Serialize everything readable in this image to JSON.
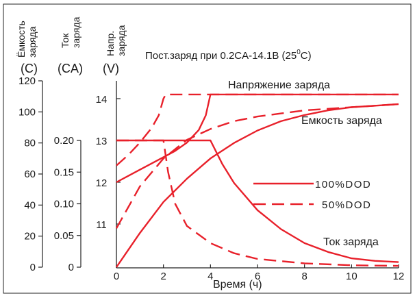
{
  "chart_data": {
    "type": "line",
    "title": "Пост.заряд при 0.2CA-14.1B (25",
    "title_deg": "0",
    "title_tail": "C)",
    "xlabel": "Время (ч)",
    "x_ticks": [
      "0",
      "2",
      "4",
      "6",
      "8",
      "10",
      "12"
    ],
    "xlim": [
      0,
      12
    ],
    "axes": {
      "capacity": {
        "label_line1": "Ёмкость",
        "label_line2": "заряда",
        "unit": "(C)",
        "ticks": [
          "0",
          "20",
          "40",
          "60",
          "80",
          "100",
          "120"
        ],
        "ylim": [
          0,
          120
        ]
      },
      "current": {
        "label_line1": "Ток",
        "label_line2": "заряда",
        "unit": "(CA)",
        "ticks": [
          "0",
          "0.05",
          "0.10",
          "0.15",
          "0.20"
        ],
        "ylim": [
          0,
          0.2
        ]
      },
      "voltage": {
        "label_line1": "Напр.",
        "label_line2": "заряда",
        "unit": "(V)",
        "ticks": [
          "11",
          "12",
          "13",
          "14"
        ],
        "ylim": [
          10,
          14.5
        ]
      }
    },
    "annotations": {
      "voltage": "Напряжение заряда",
      "capacity": "Емкость заряда",
      "current": "Ток заряда"
    },
    "legend": [
      {
        "label": "100%DOD",
        "style": "solid"
      },
      {
        "label": "50%DOD",
        "style": "dashed"
      }
    ],
    "legend_position": "center-right",
    "series_color": "#e8202a",
    "series": [
      {
        "quantity": "voltage",
        "dod": "100%",
        "style": "solid",
        "x": [
          0,
          0.5,
          1,
          1.5,
          2,
          2.5,
          3,
          3.5,
          3.8,
          4,
          6,
          8,
          10,
          12
        ],
        "y": [
          12.0,
          12.15,
          12.3,
          12.45,
          12.6,
          12.75,
          12.95,
          13.25,
          13.6,
          14.1,
          14.1,
          14.1,
          14.1,
          14.1
        ]
      },
      {
        "quantity": "voltage",
        "dod": "50%",
        "style": "dashed",
        "x": [
          0,
          0.5,
          1,
          1.5,
          1.8,
          2,
          2.1,
          6,
          8,
          10,
          12
        ],
        "y": [
          12.4,
          12.65,
          12.95,
          13.3,
          13.6,
          14.0,
          14.1,
          14.1,
          14.1,
          14.1,
          14.1
        ]
      },
      {
        "quantity": "current",
        "dod": "100%",
        "style": "solid",
        "x": [
          0,
          4,
          4.5,
          5,
          6,
          7,
          8,
          9,
          10,
          11,
          12
        ],
        "y": [
          0.2,
          0.2,
          0.163,
          0.133,
          0.09,
          0.06,
          0.038,
          0.024,
          0.014,
          0.01,
          0.008
        ]
      },
      {
        "quantity": "current",
        "dod": "50%",
        "style": "dashed",
        "x": [
          0,
          2,
          2.2,
          2.5,
          3,
          4,
          5,
          6,
          8,
          10,
          12
        ],
        "y": [
          0.2,
          0.2,
          0.15,
          0.1,
          0.065,
          0.038,
          0.022,
          0.013,
          0.006,
          0.003,
          0.002
        ]
      },
      {
        "quantity": "capacity",
        "dod": "100%",
        "style": "solid",
        "x": [
          0,
          1,
          2,
          3,
          4,
          5,
          6,
          7,
          8,
          9,
          10,
          11,
          12
        ],
        "y": [
          0,
          22,
          42,
          57,
          70,
          80,
          88,
          94,
          98,
          101,
          103,
          104,
          105
        ]
      },
      {
        "quantity": "capacity",
        "dod": "50%",
        "style": "dashed",
        "x": [
          0,
          1,
          2,
          3,
          4,
          5,
          6,
          7,
          8,
          9,
          10,
          11,
          12
        ],
        "y": [
          25,
          52,
          70,
          82,
          89,
          94,
          97,
          99,
          101,
          102,
          103,
          104,
          105
        ]
      }
    ]
  }
}
